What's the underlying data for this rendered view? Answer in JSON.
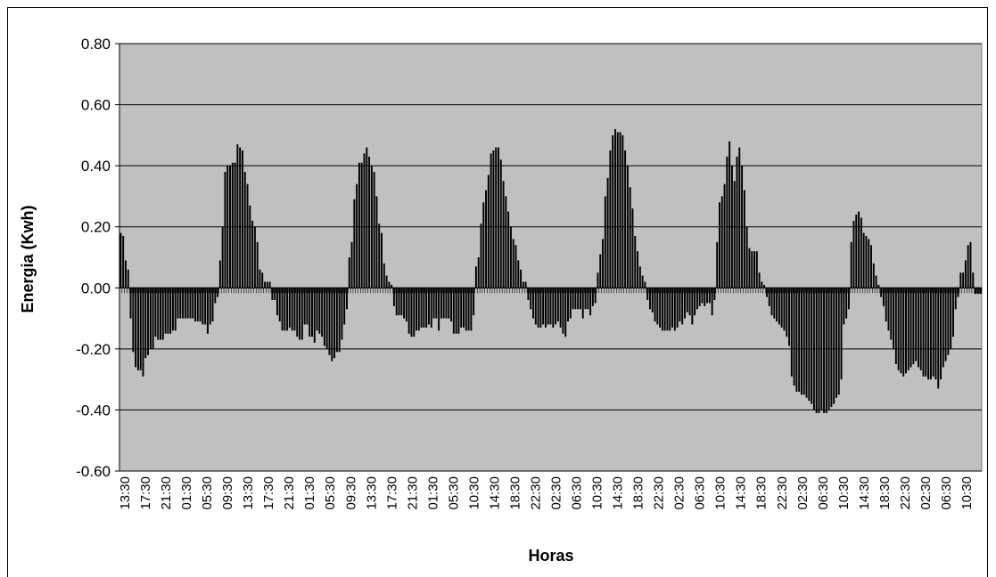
{
  "chart_data": {
    "type": "bar",
    "xlabel": "Horas",
    "ylabel": "Energia (Kwh)",
    "ylim": [
      -0.6,
      0.8
    ],
    "y_ticks": [
      "0.80",
      "0.60",
      "0.40",
      "0.20",
      "0.00",
      "-0.20",
      "-0.40",
      "-0.60"
    ],
    "grid": true,
    "plot_background": "#c0c0c0",
    "bar_color": "#000000",
    "x_tick_labels": [
      "13:30",
      "17:30",
      "21:30",
      "01:30",
      "05:30",
      "09:30",
      "13:30",
      "17:30",
      "21:30",
      "01:30",
      "05:30",
      "09:30",
      "13:30",
      "17:30",
      "21:30",
      "01:30",
      "05:30",
      "10:30",
      "14:30",
      "18:30",
      "22:30",
      "02:30",
      "06:30",
      "10:30",
      "14:30",
      "18:30",
      "22:30",
      "02:30",
      "06:30",
      "10:30",
      "14:30",
      "18:30",
      "22:30",
      "02:30",
      "06:30",
      "10:30",
      "14:30",
      "18:30",
      "22:30",
      "02:30",
      "06:30",
      "10:30"
    ],
    "values": [
      0.18,
      0.17,
      0.09,
      0.06,
      -0.1,
      -0.21,
      -0.26,
      -0.27,
      -0.27,
      -0.29,
      -0.23,
      -0.22,
      -0.2,
      -0.2,
      -0.16,
      -0.17,
      -0.17,
      -0.17,
      -0.15,
      -0.15,
      -0.15,
      -0.14,
      -0.14,
      -0.1,
      -0.1,
      -0.1,
      -0.1,
      -0.1,
      -0.1,
      -0.1,
      -0.11,
      -0.11,
      -0.11,
      -0.12,
      -0.12,
      -0.15,
      -0.12,
      -0.11,
      -0.05,
      -0.03,
      0.09,
      0.2,
      0.38,
      0.4,
      0.4,
      0.41,
      0.41,
      0.47,
      0.46,
      0.45,
      0.38,
      0.34,
      0.27,
      0.22,
      0.2,
      0.15,
      0.06,
      0.05,
      0.02,
      0.02,
      0.02,
      -0.04,
      -0.04,
      -0.09,
      -0.11,
      -0.14,
      -0.14,
      -0.14,
      -0.13,
      -0.14,
      -0.14,
      -0.16,
      -0.17,
      -0.17,
      -0.12,
      -0.12,
      -0.16,
      -0.16,
      -0.18,
      -0.14,
      -0.15,
      -0.16,
      -0.19,
      -0.2,
      -0.22,
      -0.24,
      -0.23,
      -0.21,
      -0.21,
      -0.17,
      -0.12,
      -0.07,
      0.1,
      0.15,
      0.29,
      0.34,
      0.41,
      0.41,
      0.44,
      0.46,
      0.43,
      0.4,
      0.38,
      0.3,
      0.21,
      0.18,
      0.08,
      0.04,
      0.02,
      0.01,
      -0.06,
      -0.09,
      -0.09,
      -0.09,
      -0.1,
      -0.11,
      -0.15,
      -0.16,
      -0.16,
      -0.14,
      -0.14,
      -0.13,
      -0.13,
      -0.13,
      -0.12,
      -0.13,
      -0.1,
      -0.1,
      -0.14,
      -0.1,
      -0.1,
      -0.1,
      -0.1,
      -0.11,
      -0.15,
      -0.15,
      -0.15,
      -0.13,
      -0.13,
      -0.14,
      -0.14,
      -0.14,
      -0.09,
      0.07,
      0.1,
      0.21,
      0.28,
      0.32,
      0.37,
      0.44,
      0.45,
      0.46,
      0.46,
      0.42,
      0.35,
      0.3,
      0.25,
      0.2,
      0.16,
      0.14,
      0.09,
      0.06,
      0.02,
      0.02,
      -0.04,
      -0.07,
      -0.1,
      -0.12,
      -0.13,
      -0.13,
      -0.12,
      -0.13,
      -0.12,
      -0.12,
      -0.13,
      -0.12,
      -0.11,
      -0.13,
      -0.15,
      -0.16,
      -0.11,
      -0.1,
      -0.07,
      -0.07,
      -0.07,
      -0.07,
      -0.1,
      -0.07,
      -0.07,
      -0.09,
      -0.06,
      -0.05,
      0.05,
      0.11,
      0.16,
      0.3,
      0.36,
      0.45,
      0.5,
      0.52,
      0.51,
      0.51,
      0.5,
      0.45,
      0.4,
      0.33,
      0.26,
      0.17,
      0.12,
      0.07,
      0.04,
      0.02,
      -0.04,
      -0.07,
      -0.08,
      -0.11,
      -0.12,
      -0.13,
      -0.14,
      -0.14,
      -0.14,
      -0.14,
      -0.13,
      -0.14,
      -0.13,
      -0.11,
      -0.12,
      -0.1,
      -0.08,
      -0.09,
      -0.12,
      -0.09,
      -0.07,
      -0.06,
      -0.05,
      -0.06,
      -0.05,
      -0.05,
      -0.09,
      -0.04,
      0.15,
      0.28,
      0.3,
      0.34,
      0.43,
      0.48,
      0.4,
      0.35,
      0.43,
      0.46,
      0.4,
      0.32,
      0.2,
      0.13,
      0.12,
      0.12,
      0.12,
      0.05,
      0.02,
      0.01,
      -0.03,
      -0.06,
      -0.09,
      -0.1,
      -0.11,
      -0.12,
      -0.13,
      -0.14,
      -0.16,
      -0.19,
      -0.29,
      -0.32,
      -0.34,
      -0.34,
      -0.35,
      -0.35,
      -0.36,
      -0.37,
      -0.38,
      -0.4,
      -0.41,
      -0.41,
      -0.4,
      -0.41,
      -0.41,
      -0.4,
      -0.39,
      -0.38,
      -0.36,
      -0.35,
      -0.3,
      -0.12,
      -0.1,
      -0.07,
      0.15,
      0.22,
      0.24,
      0.25,
      0.23,
      0.18,
      0.17,
      0.16,
      0.14,
      0.08,
      0.04,
      0.01,
      -0.03,
      -0.06,
      -0.11,
      -0.14,
      -0.17,
      -0.2,
      -0.25,
      -0.27,
      -0.28,
      -0.29,
      -0.28,
      -0.27,
      -0.26,
      -0.25,
      -0.24,
      -0.26,
      -0.27,
      -0.29,
      -0.29,
      -0.3,
      -0.3,
      -0.29,
      -0.3,
      -0.33,
      -0.3,
      -0.26,
      -0.24,
      -0.22,
      -0.2,
      -0.16,
      -0.07,
      -0.03,
      0.05,
      0.05,
      0.09,
      0.14,
      0.15,
      0.05,
      -0.02,
      -0.02,
      -0.02
    ]
  }
}
